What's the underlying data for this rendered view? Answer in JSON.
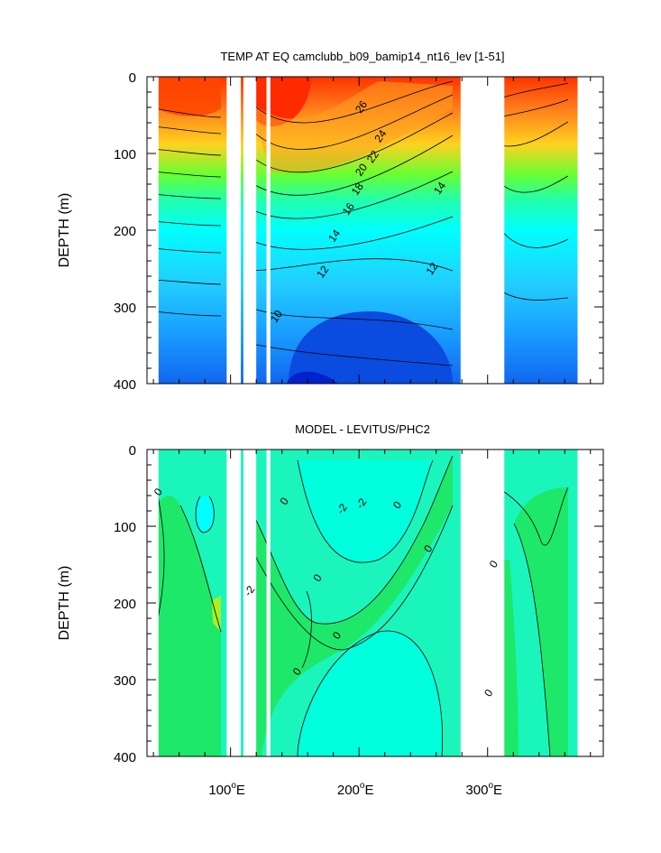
{
  "chart_data": [
    {
      "type": "contour",
      "title": "TEMP AT EQ camclubb_b09_bamip14_nt16_lev [1-51]",
      "xlabel": "",
      "ylabel": "DEPTH (m)",
      "xlim": [
        35,
        390
      ],
      "ylim": [
        400,
        0
      ],
      "yticks": [
        0,
        100,
        200,
        300,
        400
      ],
      "ytick_labels": [
        "0",
        "100",
        "200",
        "300",
        "400"
      ],
      "xticks": [
        100,
        200,
        300
      ],
      "land_gaps": [
        [
          97,
          108
        ],
        [
          110,
          120
        ],
        [
          128,
          131
        ],
        [
          279,
          313
        ],
        [
          370,
          390
        ]
      ],
      "contour_labels": [
        {
          "text": "26",
          "x": 204,
          "y": 42
        },
        {
          "text": "24",
          "x": 219,
          "y": 80
        },
        {
          "text": "22",
          "x": 213,
          "y": 107
        },
        {
          "text": "20",
          "x": 204,
          "y": 124
        },
        {
          "text": "18",
          "x": 201,
          "y": 149
        },
        {
          "text": "16",
          "x": 194,
          "y": 175
        },
        {
          "text": "14",
          "x": 183,
          "y": 210
        },
        {
          "text": "14",
          "x": 265,
          "y": 148
        },
        {
          "text": "12",
          "x": 174,
          "y": 257
        },
        {
          "text": "12",
          "x": 259,
          "y": 253
        },
        {
          "text": "10",
          "x": 138,
          "y": 315
        }
      ],
      "levels": [
        10,
        12,
        14,
        16,
        18,
        20,
        22,
        24,
        26
      ]
    },
    {
      "type": "contour",
      "title": "MODEL - LEVITUS/PHC2",
      "xlabel": "",
      "ylabel": "DEPTH (m)",
      "xlim": [
        35,
        390
      ],
      "ylim": [
        400,
        0
      ],
      "yticks": [
        0,
        100,
        200,
        300,
        400
      ],
      "ytick_labels": [
        "0",
        "100",
        "200",
        "300",
        "400"
      ],
      "xticks": [
        100,
        200,
        300
      ],
      "xtick_labels": [
        "100°E",
        "200°E",
        "300°E"
      ],
      "land_gaps": [
        [
          97,
          108
        ],
        [
          110,
          120
        ],
        [
          128,
          131
        ],
        [
          279,
          313
        ],
        [
          370,
          390
        ]
      ],
      "contour_labels": [
        {
          "text": "0",
          "x": 46,
          "y": 58
        },
        {
          "text": "0",
          "x": 144,
          "y": 70
        },
        {
          "text": "-2",
          "x": 189,
          "y": 80
        },
        {
          "text": "-2",
          "x": 204,
          "y": 73
        },
        {
          "text": "0",
          "x": 232,
          "y": 75
        },
        {
          "text": "0",
          "x": 256,
          "y": 132
        },
        {
          "text": "0",
          "x": 307,
          "y": 152
        },
        {
          "text": "0",
          "x": 170,
          "y": 170
        },
        {
          "text": "-2",
          "x": 117,
          "y": 187
        },
        {
          "text": "0",
          "x": 185,
          "y": 245
        },
        {
          "text": "0",
          "x": 154,
          "y": 292
        },
        {
          "text": "0",
          "x": 303,
          "y": 320
        }
      ],
      "levels": [
        -2,
        0,
        2
      ]
    }
  ]
}
